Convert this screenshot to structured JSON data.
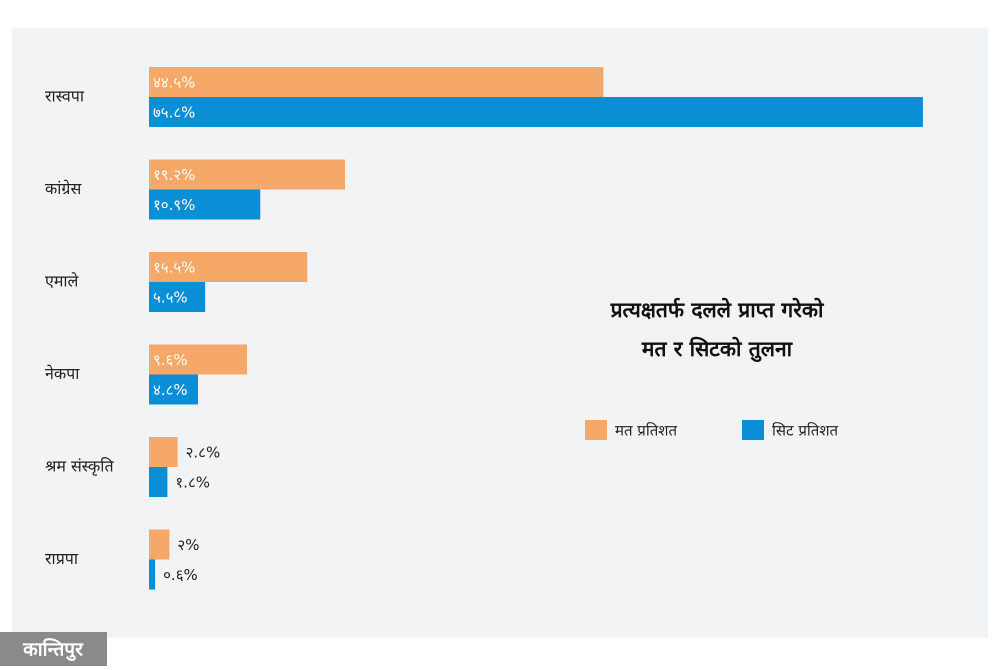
{
  "chart_data": {
    "type": "hbar",
    "title": "प्रत्यक्षतर्फ दलले प्राप्त गरेको मत र सिटको तुलना",
    "categories": [
      "रास्वपा",
      "कांग्रेस",
      "एमाले",
      "नेकपा",
      "श्रम संस्कृति",
      "राप्रपा"
    ],
    "series": [
      {
        "name": "मत प्रतिशत",
        "color": "#f6a868",
        "values": [
          44.5,
          19.2,
          15.5,
          9.6,
          2.8,
          2
        ],
        "value_labels": [
          "४४.५%",
          "१९.२%",
          "१५.५%",
          "९.६%",
          "२.८%",
          "२%"
        ]
      },
      {
        "name": "सिट प्रतिशत",
        "color": "#0a8fd6",
        "values": [
          75.8,
          10.9,
          5.5,
          4.8,
          1.8,
          0.6
        ],
        "value_labels": [
          "७५.८%",
          "१०.९%",
          "५.५%",
          "४.८%",
          "१.८%",
          "०.६%"
        ]
      }
    ],
    "logo": "कान्तिपुर"
  }
}
